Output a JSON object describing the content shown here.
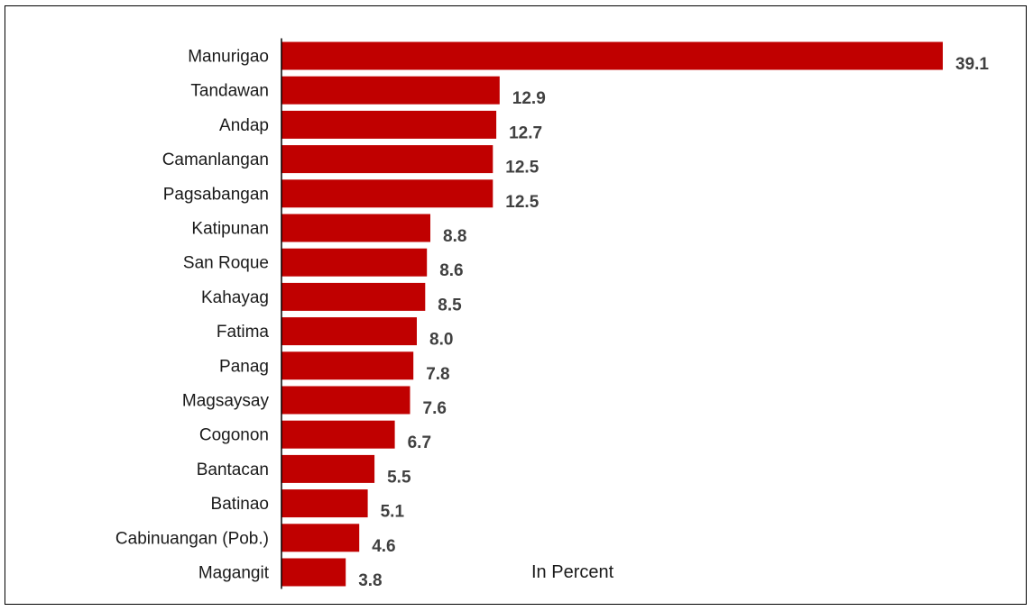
{
  "chart_data": {
    "type": "bar",
    "orientation": "horizontal",
    "categories": [
      "Manurigao",
      "Tandawan",
      "Andap",
      "Camanlangan",
      "Pagsabangan",
      "Katipunan",
      "San Roque",
      "Kahayag",
      "Fatima",
      "Panag",
      "Magsaysay",
      "Cogonon",
      "Bantacan",
      "Batinao",
      "Cabinuangan (Pob.)",
      "Magangit"
    ],
    "values": [
      39.1,
      12.9,
      12.7,
      12.5,
      12.5,
      8.8,
      8.6,
      8.5,
      8.0,
      7.8,
      7.6,
      6.7,
      5.5,
      5.1,
      4.6,
      3.8
    ],
    "value_labels": [
      "39.1",
      "12.9",
      "12.7",
      "12.5",
      "12.5",
      "8.8",
      "8.6",
      "8.5",
      "8.0",
      "7.8",
      "7.6",
      "6.7",
      "5.5",
      "5.1",
      "4.6",
      "3.8"
    ],
    "annotation": "In Percent",
    "title": "",
    "xlabel": "",
    "ylabel": "",
    "xlim": [
      0,
      39.1
    ],
    "grid": false,
    "legend": "none",
    "bar_color": "#C00000",
    "value_label_color": "#404040",
    "axis_color": "#000000"
  }
}
